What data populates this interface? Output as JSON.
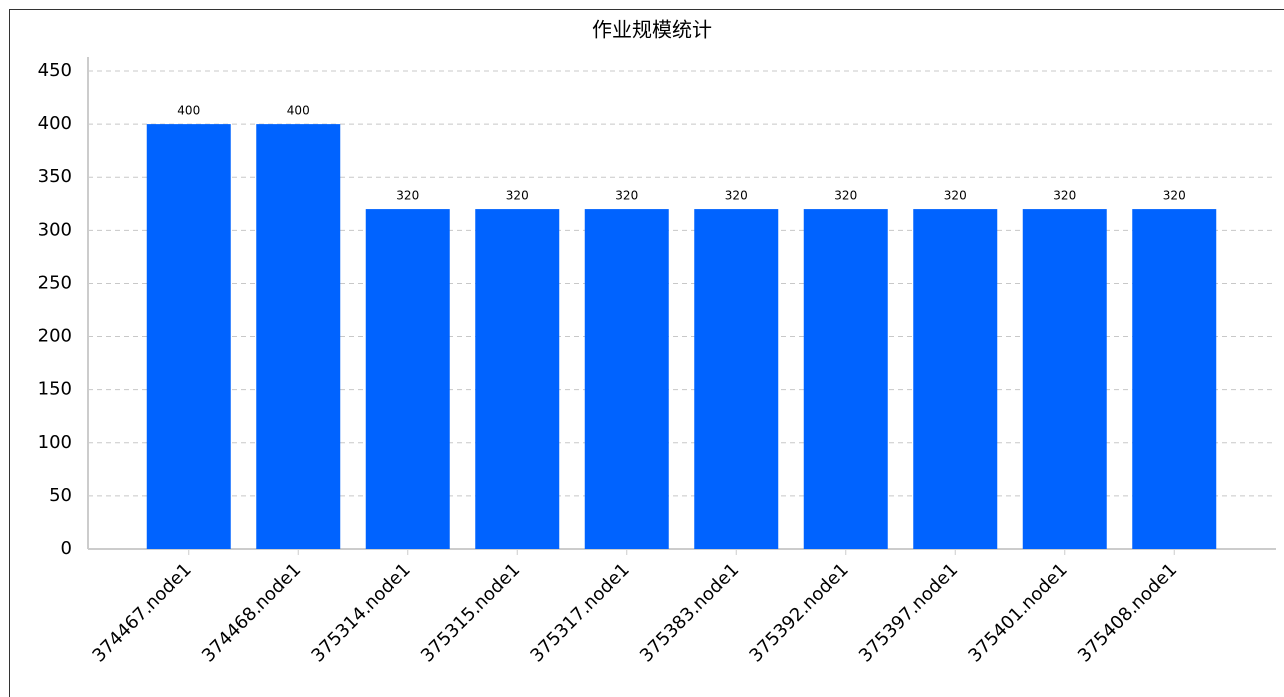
{
  "chart_data": {
    "type": "bar",
    "title": "作业规模统计",
    "categories": [
      "374467.node1",
      "374468.node1",
      "375314.node1",
      "375315.node1",
      "375317.node1",
      "375383.node1",
      "375392.node1",
      "375397.node1",
      "375401.node1",
      "375408.node1"
    ],
    "values": [
      400,
      400,
      320,
      320,
      320,
      320,
      320,
      320,
      320,
      320
    ],
    "color": "#0063ff",
    "ylim": [
      0,
      450
    ],
    "yticks": [
      0,
      50,
      100,
      150,
      200,
      250,
      300,
      350,
      400,
      450
    ],
    "grid": true
  }
}
